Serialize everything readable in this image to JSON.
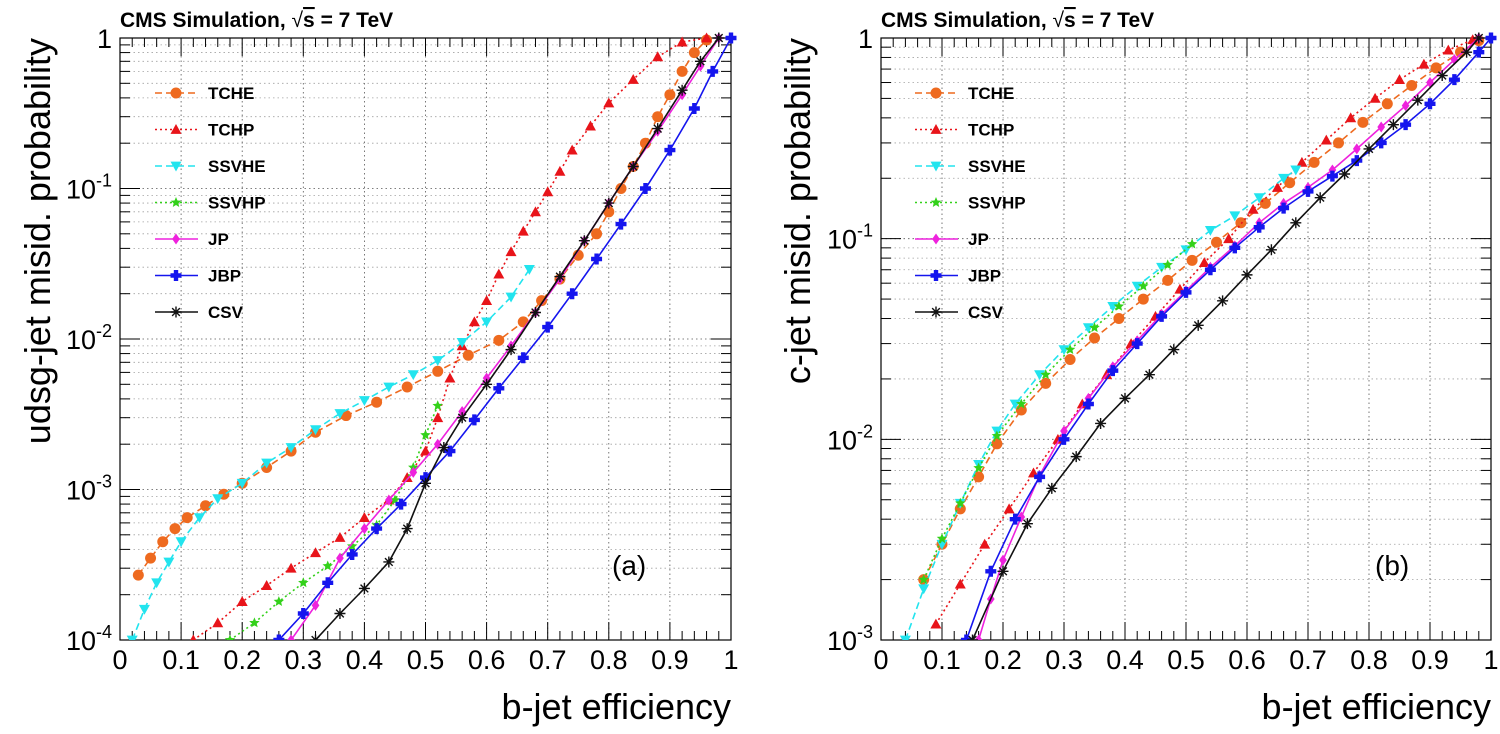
{
  "header": {
    "prefix": "CMS Simulation, ",
    "sqrt_sign": "√",
    "s": "s",
    "suffix": " = 7 TeV"
  },
  "legend_order": [
    "TCHE",
    "TCHP",
    "SSVHE",
    "SSVHP",
    "JP",
    "JBP",
    "CSV"
  ],
  "series_style": {
    "TCHE": {
      "color": "#ee6a1f",
      "marker": "circle",
      "dash": "7 4"
    },
    "TCHP": {
      "color": "#e8141a",
      "marker": "triangle-up",
      "dash": "2 3"
    },
    "SSVHE": {
      "color": "#22e4ee",
      "marker": "triangle-down",
      "dash": "7 4"
    },
    "SSVHP": {
      "color": "#33d11a",
      "marker": "star",
      "dash": "2 3"
    },
    "JP": {
      "color": "#ee22dd",
      "marker": "diamond",
      "dash": ""
    },
    "JBP": {
      "color": "#1515ee",
      "marker": "cross",
      "dash": ""
    },
    "CSV": {
      "color": "#111111",
      "marker": "asterisk",
      "dash": ""
    }
  },
  "chart_data": [
    {
      "type": "line",
      "panel_label": "(a)",
      "xlabel": "b-jet efficiency",
      "ylabel": "udsg-jet misid. probability",
      "xlim": [
        0,
        1
      ],
      "ylim": [
        0.0001,
        1
      ],
      "yscale": "log",
      "x_ticks": [
        "0",
        "0.1",
        "0.2",
        "0.3",
        "0.4",
        "0.5",
        "0.6",
        "0.7",
        "0.8",
        "0.9",
        "1"
      ],
      "y_ticks": [
        {
          "base": "10",
          "exp": "-4"
        },
        {
          "base": "10",
          "exp": "-3"
        },
        {
          "base": "10",
          "exp": "-2"
        },
        {
          "base": "10",
          "exp": "-1"
        },
        {
          "base": "1",
          "exp": ""
        }
      ],
      "grid": true,
      "legend_position": "top-left",
      "series": [
        {
          "name": "TCHE",
          "x": [
            0.03,
            0.05,
            0.07,
            0.09,
            0.11,
            0.14,
            0.17,
            0.2,
            0.24,
            0.28,
            0.32,
            0.37,
            0.42,
            0.47,
            0.52,
            0.57,
            0.62,
            0.66,
            0.69,
            0.72,
            0.75,
            0.78,
            0.8,
            0.82,
            0.84,
            0.86,
            0.88,
            0.9,
            0.92,
            0.94,
            0.96
          ],
          "y": [
            0.00027,
            0.00035,
            0.00045,
            0.00055,
            0.00065,
            0.00078,
            0.00093,
            0.0011,
            0.0014,
            0.0018,
            0.0024,
            0.0031,
            0.0038,
            0.0048,
            0.0061,
            0.0078,
            0.0098,
            0.013,
            0.018,
            0.025,
            0.036,
            0.05,
            0.07,
            0.1,
            0.14,
            0.2,
            0.3,
            0.42,
            0.6,
            0.8,
            0.97
          ]
        },
        {
          "name": "TCHP",
          "x": [
            0.12,
            0.16,
            0.2,
            0.24,
            0.28,
            0.32,
            0.36,
            0.4,
            0.44,
            0.47,
            0.5,
            0.52,
            0.54,
            0.56,
            0.58,
            0.6,
            0.62,
            0.64,
            0.66,
            0.68,
            0.7,
            0.72,
            0.74,
            0.77,
            0.8,
            0.84,
            0.88,
            0.92,
            0.96
          ],
          "y": [
            0.0001,
            0.00013,
            0.00018,
            0.00023,
            0.0003,
            0.00038,
            0.00048,
            0.00065,
            0.00085,
            0.0012,
            0.0018,
            0.003,
            0.0055,
            0.009,
            0.013,
            0.018,
            0.027,
            0.038,
            0.052,
            0.07,
            0.095,
            0.13,
            0.18,
            0.26,
            0.37,
            0.53,
            0.75,
            0.94,
            1.0
          ]
        },
        {
          "name": "SSVHE",
          "x": [
            0.02,
            0.04,
            0.06,
            0.08,
            0.1,
            0.13,
            0.16,
            0.2,
            0.24,
            0.28,
            0.32,
            0.36,
            0.4,
            0.44,
            0.48,
            0.52,
            0.56,
            0.6,
            0.64,
            0.67
          ],
          "y": [
            0.0001,
            0.00016,
            0.00024,
            0.00033,
            0.00045,
            0.00065,
            0.00087,
            0.0011,
            0.0015,
            0.0019,
            0.0025,
            0.0032,
            0.0039,
            0.0048,
            0.0058,
            0.0072,
            0.0095,
            0.013,
            0.019,
            0.029
          ]
        },
        {
          "name": "SSVHP",
          "x": [
            0.18,
            0.22,
            0.26,
            0.3,
            0.34,
            0.38,
            0.42,
            0.45,
            0.48,
            0.5,
            0.52
          ],
          "y": [
            0.0001,
            0.00013,
            0.00018,
            0.00024,
            0.00031,
            0.00042,
            0.00058,
            0.00085,
            0.0014,
            0.0023,
            0.0036
          ]
        },
        {
          "name": "JP",
          "x": [
            0.28,
            0.32,
            0.36,
            0.4,
            0.44,
            0.48,
            0.52,
            0.56,
            0.6,
            0.64,
            0.68,
            0.72,
            0.76,
            0.8,
            0.84,
            0.88,
            0.92,
            0.95,
            0.98
          ],
          "y": [
            0.0001,
            0.00017,
            0.00035,
            0.00055,
            0.00085,
            0.0013,
            0.002,
            0.0033,
            0.0055,
            0.009,
            0.015,
            0.025,
            0.045,
            0.08,
            0.14,
            0.24,
            0.42,
            0.65,
            1.0
          ]
        },
        {
          "name": "JBP",
          "x": [
            0.26,
            0.3,
            0.34,
            0.38,
            0.42,
            0.46,
            0.5,
            0.54,
            0.58,
            0.62,
            0.66,
            0.7,
            0.74,
            0.78,
            0.82,
            0.86,
            0.9,
            0.94,
            0.97,
            1.0
          ],
          "y": [
            0.0001,
            0.00015,
            0.00024,
            0.00037,
            0.00055,
            0.0008,
            0.0012,
            0.0018,
            0.0029,
            0.0047,
            0.0075,
            0.012,
            0.02,
            0.034,
            0.058,
            0.1,
            0.18,
            0.34,
            0.6,
            1.0
          ]
        },
        {
          "name": "CSV",
          "x": [
            0.32,
            0.36,
            0.4,
            0.44,
            0.47,
            0.5,
            0.53,
            0.56,
            0.6,
            0.64,
            0.68,
            0.72,
            0.76,
            0.8,
            0.84,
            0.88,
            0.92,
            0.95,
            0.98
          ],
          "y": [
            0.0001,
            0.00015,
            0.00022,
            0.00033,
            0.00055,
            0.0011,
            0.0019,
            0.003,
            0.005,
            0.0085,
            0.015,
            0.026,
            0.045,
            0.08,
            0.14,
            0.25,
            0.45,
            0.7,
            1.0
          ]
        }
      ]
    },
    {
      "type": "line",
      "panel_label": "(b)",
      "xlabel": "b-jet efficiency",
      "ylabel": "c-jet misid. probability",
      "xlim": [
        0,
        1
      ],
      "ylim": [
        0.001,
        1
      ],
      "yscale": "log",
      "x_ticks": [
        "0",
        "0.1",
        "0.2",
        "0.3",
        "0.4",
        "0.5",
        "0.6",
        "0.7",
        "0.8",
        "0.9",
        "1"
      ],
      "y_ticks": [
        {
          "base": "10",
          "exp": "-3"
        },
        {
          "base": "10",
          "exp": "-2"
        },
        {
          "base": "10",
          "exp": "-1"
        },
        {
          "base": "1",
          "exp": ""
        }
      ],
      "grid": true,
      "legend_position": "top-left",
      "series": [
        {
          "name": "TCHE",
          "x": [
            0.07,
            0.1,
            0.13,
            0.16,
            0.19,
            0.23,
            0.27,
            0.31,
            0.35,
            0.39,
            0.43,
            0.47,
            0.51,
            0.55,
            0.59,
            0.63,
            0.67,
            0.71,
            0.75,
            0.79,
            0.83,
            0.87,
            0.91,
            0.95,
            0.98
          ],
          "y": [
            0.002,
            0.003,
            0.0045,
            0.0065,
            0.0095,
            0.014,
            0.019,
            0.025,
            0.032,
            0.04,
            0.05,
            0.062,
            0.078,
            0.096,
            0.12,
            0.15,
            0.19,
            0.24,
            0.3,
            0.38,
            0.47,
            0.58,
            0.71,
            0.85,
            0.97
          ]
        },
        {
          "name": "TCHP",
          "x": [
            0.09,
            0.13,
            0.17,
            0.21,
            0.25,
            0.29,
            0.33,
            0.37,
            0.41,
            0.45,
            0.49,
            0.53,
            0.57,
            0.61,
            0.65,
            0.69,
            0.73,
            0.77,
            0.81,
            0.85,
            0.89,
            0.93,
            0.97
          ],
          "y": [
            0.0012,
            0.0019,
            0.003,
            0.0045,
            0.0068,
            0.01,
            0.015,
            0.021,
            0.03,
            0.041,
            0.056,
            0.076,
            0.1,
            0.14,
            0.18,
            0.24,
            0.31,
            0.4,
            0.5,
            0.62,
            0.74,
            0.87,
            0.98
          ]
        },
        {
          "name": "SSVHE",
          "x": [
            0.04,
            0.07,
            0.1,
            0.13,
            0.16,
            0.19,
            0.22,
            0.26,
            0.3,
            0.34,
            0.38,
            0.42,
            0.46,
            0.5,
            0.54,
            0.58,
            0.62,
            0.66,
            0.68
          ],
          "y": [
            0.001,
            0.0018,
            0.003,
            0.0048,
            0.0075,
            0.011,
            0.015,
            0.021,
            0.028,
            0.036,
            0.046,
            0.058,
            0.072,
            0.088,
            0.11,
            0.13,
            0.16,
            0.2,
            0.22
          ]
        },
        {
          "name": "SSVHP",
          "x": [
            0.07,
            0.1,
            0.13,
            0.16,
            0.19,
            0.23,
            0.27,
            0.31,
            0.35,
            0.39,
            0.43,
            0.47,
            0.51
          ],
          "y": [
            0.002,
            0.0032,
            0.0048,
            0.0072,
            0.0104,
            0.015,
            0.021,
            0.028,
            0.036,
            0.046,
            0.058,
            0.074,
            0.094
          ]
        },
        {
          "name": "JP",
          "x": [
            0.16,
            0.18,
            0.2,
            0.23,
            0.26,
            0.3,
            0.34,
            0.38,
            0.42,
            0.46,
            0.5,
            0.54,
            0.58,
            0.62,
            0.66,
            0.7,
            0.74,
            0.78,
            0.82,
            0.86,
            0.9,
            0.94,
            0.98
          ],
          "y": [
            0.001,
            0.0016,
            0.0025,
            0.0041,
            0.0066,
            0.011,
            0.016,
            0.023,
            0.031,
            0.042,
            0.055,
            0.072,
            0.092,
            0.12,
            0.15,
            0.18,
            0.22,
            0.28,
            0.36,
            0.46,
            0.6,
            0.78,
            1.0
          ]
        },
        {
          "name": "JBP",
          "x": [
            0.14,
            0.18,
            0.22,
            0.26,
            0.3,
            0.34,
            0.38,
            0.42,
            0.46,
            0.5,
            0.54,
            0.58,
            0.62,
            0.66,
            0.7,
            0.74,
            0.78,
            0.82,
            0.86,
            0.9,
            0.94,
            0.98,
            1.0
          ],
          "y": [
            0.001,
            0.0022,
            0.004,
            0.0065,
            0.01,
            0.015,
            0.022,
            0.03,
            0.041,
            0.054,
            0.07,
            0.09,
            0.114,
            0.142,
            0.172,
            0.205,
            0.245,
            0.3,
            0.37,
            0.47,
            0.62,
            0.85,
            1.0
          ]
        },
        {
          "name": "CSV",
          "x": [
            0.15,
            0.2,
            0.24,
            0.28,
            0.32,
            0.36,
            0.4,
            0.44,
            0.48,
            0.52,
            0.56,
            0.6,
            0.64,
            0.68,
            0.72,
            0.76,
            0.8,
            0.84,
            0.88,
            0.92,
            0.96,
            0.98
          ],
          "y": [
            0.001,
            0.0022,
            0.0038,
            0.0057,
            0.0082,
            0.012,
            0.016,
            0.021,
            0.028,
            0.037,
            0.049,
            0.066,
            0.088,
            0.12,
            0.16,
            0.21,
            0.28,
            0.37,
            0.49,
            0.65,
            0.85,
            1.0
          ]
        }
      ]
    }
  ]
}
